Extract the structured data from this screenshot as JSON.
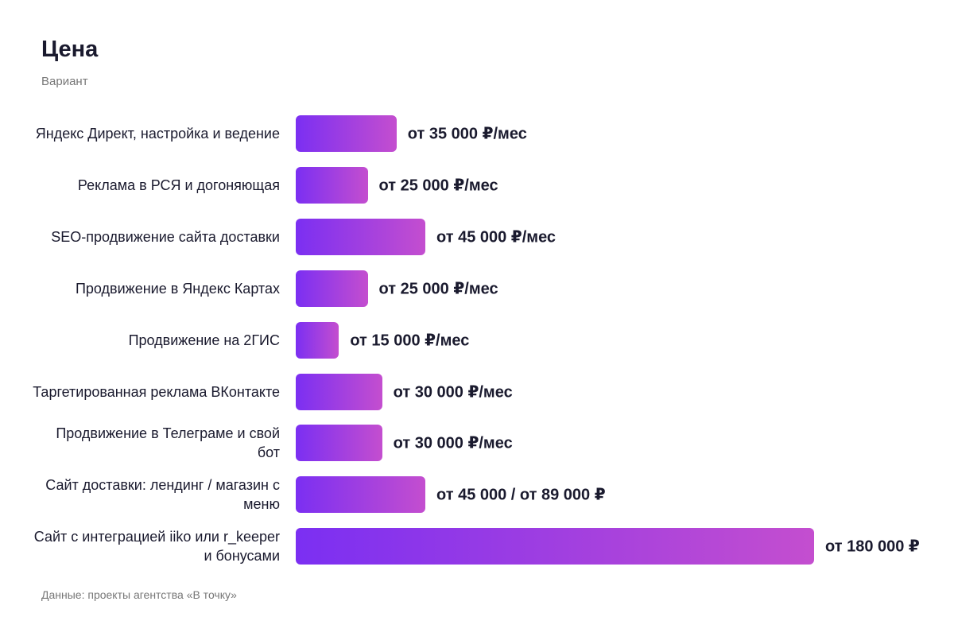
{
  "chart_data": {
    "type": "bar",
    "orientation": "horizontal",
    "title": "Цена",
    "subtitle": "Вариант",
    "categories": [
      "Яндекс Директ, настройка и ведение",
      "Реклама в РСЯ и догоняющая",
      "SEO-продвижение сайта доставки",
      "Продвижение в Яндекс Картах",
      "Продвижение на 2ГИС",
      "Таргетированная реклама ВКонтакте",
      "Продвижение в Телеграме и свой бот",
      "Сайт доставки: лендинг / магазин с меню",
      "Сайт с интеграцией iiko или r_keeper и бонусами"
    ],
    "values": [
      35000,
      25000,
      45000,
      25000,
      15000,
      30000,
      30000,
      45000,
      180000
    ],
    "value_labels": [
      "от 35 000 ₽/мес",
      "от 25 000 ₽/мес",
      "от 45 000 ₽/мес",
      "от 25 000 ₽/мес",
      "от 15 000 ₽/мес",
      "от 30 000 ₽/мес",
      "от 30 000 ₽/мес",
      "от 45 000 / от 89 000 ₽",
      "от 180 000 ₽"
    ],
    "color": [
      "#7b2ff2",
      "#c44ecf"
    ],
    "note": "Данные: проекты агентства «В точку»"
  }
}
